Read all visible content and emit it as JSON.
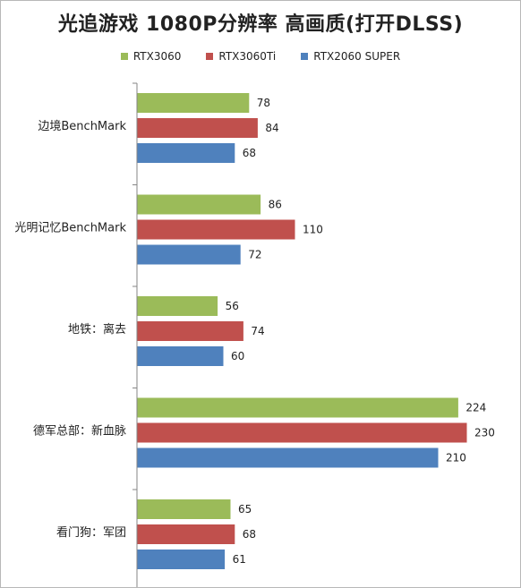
{
  "chart_data": {
    "type": "bar",
    "orientation": "horizontal",
    "title": "光追游戏 1080P分辨率 高画质(打开DLSS)",
    "categories": [
      "边境BenchMark",
      "光明记忆BenchMark",
      "地铁：离去",
      "德军总部：新血脉",
      "看门狗：军团"
    ],
    "series": [
      {
        "name": "RTX3060",
        "color": "#9bbb59",
        "values": [
          78,
          86,
          56,
          224,
          65
        ]
      },
      {
        "name": "RTX3060Ti",
        "color": "#c0504d",
        "values": [
          84,
          110,
          74,
          230,
          68
        ]
      },
      {
        "name": "RTX2060 SUPER",
        "color": "#4f81bd",
        "values": [
          68,
          72,
          60,
          210,
          61
        ]
      }
    ],
    "xlim": [
      0,
      240
    ],
    "grid": false,
    "legend_position": "top"
  }
}
